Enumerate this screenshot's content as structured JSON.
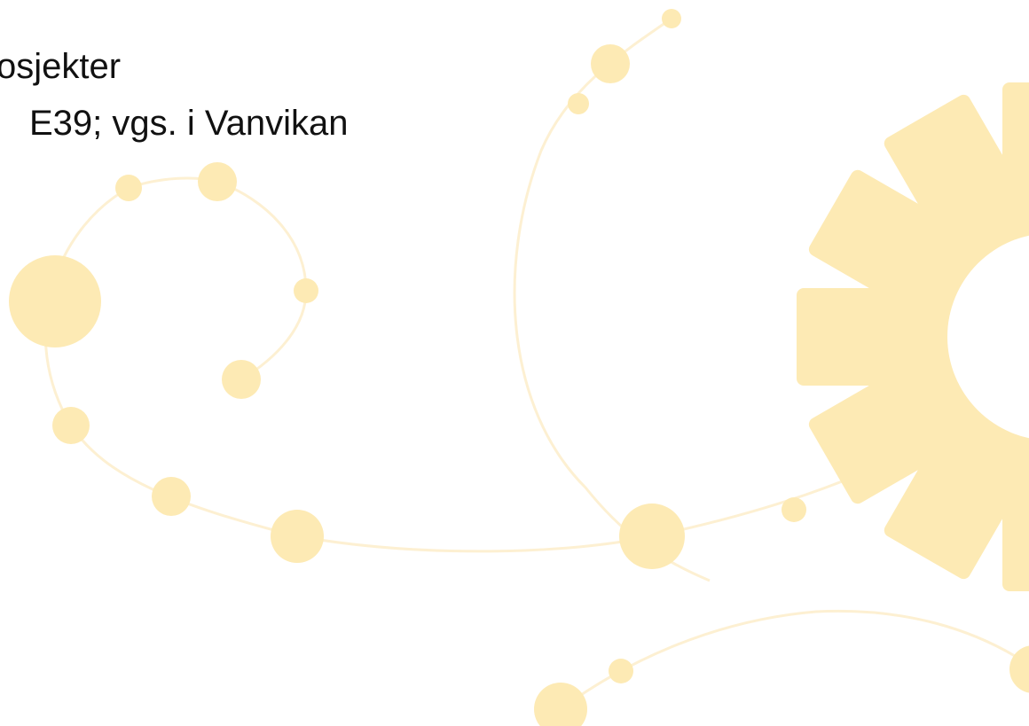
{
  "slide": {
    "lines": [
      "osjekter",
      "E39; vgs. i Vanvikan"
    ]
  }
}
